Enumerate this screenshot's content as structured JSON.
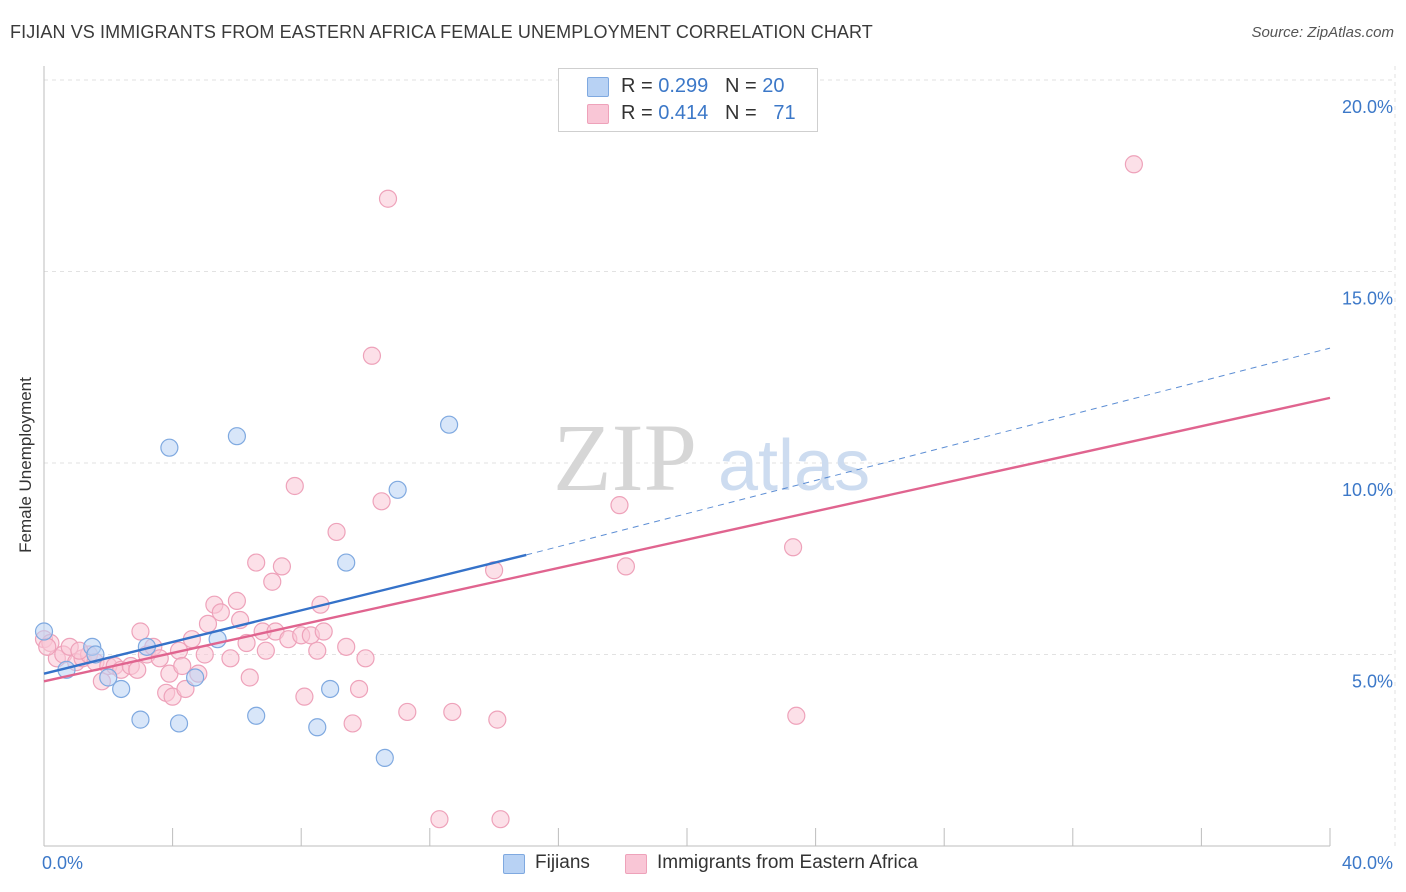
{
  "title": "FIJIAN VS IMMIGRANTS FROM EASTERN AFRICA FEMALE UNEMPLOYMENT CORRELATION CHART",
  "source": "Source: ZipAtlas.com",
  "watermark": {
    "zip": "ZIP",
    "atlas": "atlas"
  },
  "legend": {
    "rows": [
      {
        "r_label": "R = ",
        "r_value": "0.299",
        "n_label": "N = ",
        "n_value": "20"
      },
      {
        "r_label": "R = ",
        "r_value": "0.414",
        "n_label": "N = ",
        "n_value": "71"
      }
    ]
  },
  "colors": {
    "fijians_fill": "#b8d2f4",
    "fijians_stroke": "#7fa9e0",
    "fijians_line": "#3572c9",
    "eastafrica_fill": "#f9c6d6",
    "eastafrica_stroke": "#eea2ba",
    "eastafrica_line": "#e0648f",
    "tick_label": "#3c78c8",
    "grid": "#e2e2e2"
  },
  "chart_data": {
    "type": "scatter",
    "xlabel": "",
    "ylabel": "Female Unemployment",
    "xlim": [
      0,
      40
    ],
    "ylim": [
      0,
      20
    ],
    "x_tick_labels": [
      "0.0%",
      "40.0%"
    ],
    "y_ticks": [
      5,
      10,
      15,
      20
    ],
    "y_tick_labels": [
      "5.0%",
      "10.0%",
      "15.0%",
      "20.0%"
    ],
    "grid": true,
    "legend_position": "top-center",
    "series": [
      {
        "name": "Fijians",
        "r": 0.299,
        "n": 20,
        "points": [
          [
            0.0,
            5.6
          ],
          [
            0.7,
            4.6
          ],
          [
            1.5,
            5.2
          ],
          [
            1.6,
            5.0
          ],
          [
            2.0,
            4.4
          ],
          [
            2.4,
            4.1
          ],
          [
            3.0,
            3.3
          ],
          [
            3.2,
            5.2
          ],
          [
            3.9,
            10.4
          ],
          [
            4.2,
            3.2
          ],
          [
            4.7,
            4.4
          ],
          [
            5.4,
            5.4
          ],
          [
            6.0,
            10.7
          ],
          [
            6.6,
            3.4
          ],
          [
            8.5,
            3.1
          ],
          [
            8.9,
            4.1
          ],
          [
            9.4,
            7.4
          ],
          [
            10.6,
            2.3
          ],
          [
            11.0,
            9.3
          ],
          [
            12.6,
            11.0
          ]
        ],
        "trend": {
          "x0": 0,
          "y0": 4.5,
          "x1": 15,
          "y1": 7.6,
          "dashed_to_x": 40,
          "dashed_to_y": 13.0
        }
      },
      {
        "name": "Immigrants from Eastern Africa",
        "r": 0.414,
        "n": 71,
        "points": [
          [
            0.0,
            5.4
          ],
          [
            0.2,
            5.3
          ],
          [
            0.4,
            4.9
          ],
          [
            0.6,
            5.0
          ],
          [
            0.8,
            5.2
          ],
          [
            1.0,
            4.8
          ],
          [
            1.2,
            4.9
          ],
          [
            1.4,
            5.0
          ],
          [
            1.6,
            4.8
          ],
          [
            1.8,
            4.3
          ],
          [
            2.0,
            4.7
          ],
          [
            2.2,
            4.7
          ],
          [
            2.4,
            4.6
          ],
          [
            2.7,
            4.7
          ],
          [
            3.0,
            5.6
          ],
          [
            3.2,
            5.0
          ],
          [
            3.4,
            5.2
          ],
          [
            3.6,
            4.9
          ],
          [
            3.8,
            4.0
          ],
          [
            3.9,
            4.5
          ],
          [
            4.0,
            3.9
          ],
          [
            4.2,
            5.1
          ],
          [
            4.3,
            4.7
          ],
          [
            4.4,
            4.1
          ],
          [
            4.6,
            5.4
          ],
          [
            4.8,
            4.5
          ],
          [
            5.0,
            5.0
          ],
          [
            5.1,
            5.8
          ],
          [
            5.3,
            6.3
          ],
          [
            5.5,
            6.1
          ],
          [
            5.8,
            4.9
          ],
          [
            6.0,
            6.4
          ],
          [
            6.1,
            5.9
          ],
          [
            6.3,
            5.3
          ],
          [
            6.4,
            4.4
          ],
          [
            6.6,
            7.4
          ],
          [
            6.8,
            5.6
          ],
          [
            6.9,
            5.1
          ],
          [
            7.1,
            6.9
          ],
          [
            7.2,
            5.6
          ],
          [
            7.4,
            7.3
          ],
          [
            7.6,
            5.4
          ],
          [
            7.8,
            9.4
          ],
          [
            8.0,
            5.5
          ],
          [
            8.1,
            3.9
          ],
          [
            8.3,
            5.5
          ],
          [
            8.5,
            5.1
          ],
          [
            8.6,
            6.3
          ],
          [
            8.7,
            5.6
          ],
          [
            9.1,
            8.2
          ],
          [
            9.4,
            5.2
          ],
          [
            9.6,
            3.2
          ],
          [
            9.8,
            4.1
          ],
          [
            10.0,
            4.9
          ],
          [
            10.2,
            12.8
          ],
          [
            10.5,
            9.0
          ],
          [
            10.7,
            16.9
          ],
          [
            11.3,
            3.5
          ],
          [
            12.3,
            0.7
          ],
          [
            12.7,
            3.5
          ],
          [
            14.0,
            7.2
          ],
          [
            14.1,
            3.3
          ],
          [
            14.2,
            0.7
          ],
          [
            17.9,
            8.9
          ],
          [
            18.1,
            7.3
          ],
          [
            23.3,
            7.8
          ],
          [
            23.4,
            3.4
          ],
          [
            33.9,
            17.8
          ],
          [
            0.1,
            5.2
          ],
          [
            1.1,
            5.1
          ],
          [
            2.9,
            4.6
          ]
        ],
        "trend": {
          "x0": 0,
          "y0": 4.3,
          "x1": 40,
          "y1": 11.7
        }
      }
    ]
  }
}
